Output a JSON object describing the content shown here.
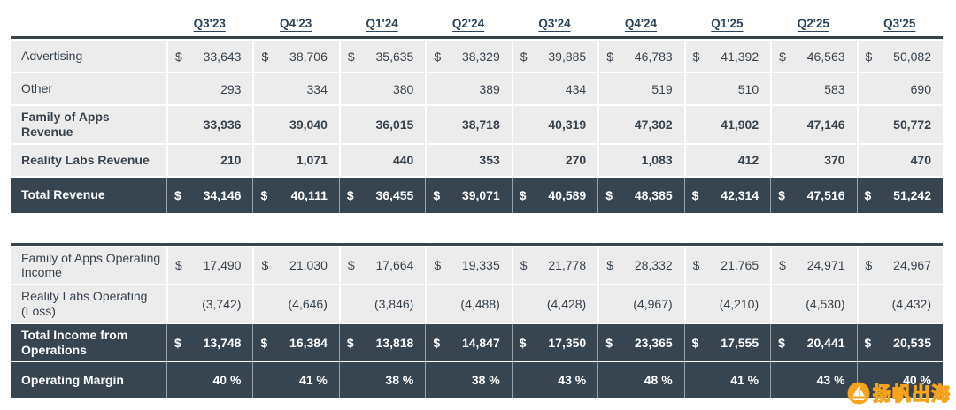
{
  "chart_data": {
    "type": "table",
    "categories": [
      "Q3'23",
      "Q4'23",
      "Q1'24",
      "Q2'24",
      "Q3'24",
      "Q4'24",
      "Q1'25",
      "Q2'25",
      "Q3'25"
    ],
    "tables": [
      {
        "id": "revenue",
        "rows": [
          {
            "label": "Advertising",
            "dollar": true,
            "bold": false,
            "dark": false,
            "values": [
              "33,643",
              "38,706",
              "35,635",
              "38,329",
              "39,885",
              "46,783",
              "41,392",
              "46,563",
              "50,082"
            ]
          },
          {
            "label": "Other",
            "dollar": false,
            "bold": false,
            "dark": false,
            "values": [
              "293",
              "334",
              "380",
              "389",
              "434",
              "519",
              "510",
              "583",
              "690"
            ]
          },
          {
            "label": "Family of Apps Revenue",
            "dollar": false,
            "bold": true,
            "dark": false,
            "values": [
              "33,936",
              "39,040",
              "36,015",
              "38,718",
              "40,319",
              "47,302",
              "41,902",
              "47,146",
              "50,772"
            ]
          },
          {
            "label": "Reality Labs Revenue",
            "dollar": false,
            "bold": true,
            "dark": false,
            "values": [
              "210",
              "1,071",
              "440",
              "353",
              "270",
              "1,083",
              "412",
              "370",
              "470"
            ]
          },
          {
            "label": "Total Revenue",
            "dollar": true,
            "bold": true,
            "dark": true,
            "values": [
              "34,146",
              "40,111",
              "36,455",
              "39,071",
              "40,589",
              "48,385",
              "42,314",
              "47,516",
              "51,242"
            ]
          }
        ]
      },
      {
        "id": "operating",
        "rows": [
          {
            "label": "Family of Apps Operating Income",
            "dollar": true,
            "bold": false,
            "dark": false,
            "values": [
              "17,490",
              "21,030",
              "17,664",
              "19,335",
              "21,778",
              "28,332",
              "21,765",
              "24,971",
              "24,967"
            ]
          },
          {
            "label": "Reality Labs Operating (Loss)",
            "dollar": false,
            "bold": false,
            "dark": false,
            "values": [
              "(3,742)",
              "(4,646)",
              "(3,846)",
              "(4,488)",
              "(4,428)",
              "(4,967)",
              "(4,210)",
              "(4,530)",
              "(4,432)"
            ]
          },
          {
            "label": "Total Income from Operations",
            "dollar": true,
            "bold": true,
            "dark": true,
            "values": [
              "13,748",
              "16,384",
              "13,818",
              "14,847",
              "17,350",
              "23,365",
              "17,555",
              "20,441",
              "20,535"
            ]
          },
          {
            "label": "Operating Margin",
            "dollar": false,
            "bold": true,
            "dark": true,
            "values": [
              "40 %",
              "41 %",
              "38 %",
              "38 %",
              "43 %",
              "48 %",
              "41 %",
              "43 %",
              "40 %"
            ]
          }
        ]
      }
    ]
  },
  "watermark": {
    "text": "扬帆出海"
  },
  "colors": {
    "dark_row_bg": "#36454f",
    "gray_row_bg": "#ececec",
    "header_text": "#2b4459",
    "watermark_orange": "#f7a31c"
  }
}
